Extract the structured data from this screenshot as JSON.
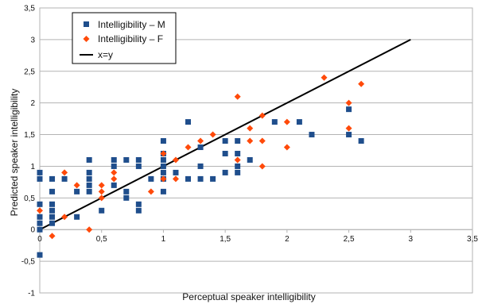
{
  "chart_data": {
    "type": "scatter",
    "title": "",
    "xlabel": "Perceptual speaker intelligibility",
    "ylabel": "Predicted speaker intelligibility",
    "xlim": [
      0,
      3.5
    ],
    "ylim": [
      -1,
      3.5
    ],
    "x_ticks": [
      "0",
      "0,5",
      "1",
      "1,5",
      "2",
      "2,5",
      "3",
      "3,5"
    ],
    "x_tick_values": [
      0,
      0.5,
      1,
      1.5,
      2,
      2.5,
      3,
      3.5
    ],
    "y_ticks": [
      "-1",
      "-0,5",
      "0",
      "0,5",
      "1",
      "1,5",
      "2",
      "2,5",
      "3",
      "3,5"
    ],
    "y_tick_values": [
      -1,
      -0.5,
      0,
      0.5,
      1,
      1.5,
      2,
      2.5,
      3,
      3.5
    ],
    "grid": "horizontal",
    "legend_position": "top-left",
    "series": [
      {
        "name": "Intelligibility – M",
        "marker": "square",
        "color": "#1f4e8c",
        "points": [
          [
            0,
            -0.4
          ],
          [
            0,
            0
          ],
          [
            0,
            0.1
          ],
          [
            0,
            0.2
          ],
          [
            0,
            0.4
          ],
          [
            0,
            0.8
          ],
          [
            0,
            0.9
          ],
          [
            0.1,
            0.1
          ],
          [
            0.1,
            0.2
          ],
          [
            0.1,
            0.3
          ],
          [
            0.1,
            0.4
          ],
          [
            0.1,
            0.6
          ],
          [
            0.1,
            0.8
          ],
          [
            0.2,
            0.8
          ],
          [
            0.3,
            0.2
          ],
          [
            0.3,
            0.6
          ],
          [
            0.4,
            0.6
          ],
          [
            0.4,
            0.7
          ],
          [
            0.4,
            0.8
          ],
          [
            0.4,
            0.9
          ],
          [
            0.4,
            1.1
          ],
          [
            0.5,
            0.3
          ],
          [
            0.6,
            0.7
          ],
          [
            0.6,
            1.0
          ],
          [
            0.6,
            1.1
          ],
          [
            0.7,
            0.5
          ],
          [
            0.7,
            0.6
          ],
          [
            0.7,
            1.1
          ],
          [
            0.8,
            0.3
          ],
          [
            0.8,
            0.4
          ],
          [
            0.8,
            1.0
          ],
          [
            0.8,
            1.1
          ],
          [
            0.9,
            0.8
          ],
          [
            1.0,
            0.6
          ],
          [
            1.0,
            0.8
          ],
          [
            1.0,
            0.9
          ],
          [
            1.0,
            1.0
          ],
          [
            1.0,
            1.1
          ],
          [
            1.0,
            1.2
          ],
          [
            1.0,
            1.4
          ],
          [
            1.1,
            0.9
          ],
          [
            1.2,
            0.8
          ],
          [
            1.2,
            1.7
          ],
          [
            1.3,
            0.8
          ],
          [
            1.3,
            1.0
          ],
          [
            1.3,
            1.3
          ],
          [
            1.4,
            0.8
          ],
          [
            1.5,
            0.9
          ],
          [
            1.5,
            1.2
          ],
          [
            1.5,
            1.4
          ],
          [
            1.6,
            0.9
          ],
          [
            1.6,
            1.0
          ],
          [
            1.6,
            1.2
          ],
          [
            1.6,
            1.4
          ],
          [
            1.7,
            1.1
          ],
          [
            1.9,
            1.7
          ],
          [
            2.1,
            1.7
          ],
          [
            2.2,
            1.5
          ],
          [
            2.5,
            1.5
          ],
          [
            2.5,
            1.9
          ],
          [
            2.6,
            1.4
          ]
        ]
      },
      {
        "name": "Intelligibility – F",
        "marker": "diamond",
        "color": "#ff4a0a",
        "points": [
          [
            0,
            0.3
          ],
          [
            0.1,
            -0.1
          ],
          [
            0.2,
            0.2
          ],
          [
            0.2,
            0.9
          ],
          [
            0.3,
            0.7
          ],
          [
            0.4,
            0
          ],
          [
            0.5,
            0.5
          ],
          [
            0.5,
            0.6
          ],
          [
            0.5,
            0.7
          ],
          [
            0.6,
            0.8
          ],
          [
            0.6,
            0.9
          ],
          [
            0.9,
            0.6
          ],
          [
            1.0,
            0.8
          ],
          [
            1.0,
            1.2
          ],
          [
            1.1,
            0.8
          ],
          [
            1.1,
            1.1
          ],
          [
            1.2,
            1.3
          ],
          [
            1.3,
            1.4
          ],
          [
            1.4,
            1.5
          ],
          [
            1.6,
            1.1
          ],
          [
            1.6,
            2.1
          ],
          [
            1.7,
            1.4
          ],
          [
            1.7,
            1.6
          ],
          [
            1.8,
            1.0
          ],
          [
            1.8,
            1.4
          ],
          [
            1.8,
            1.8
          ],
          [
            2.0,
            1.3
          ],
          [
            2.0,
            1.7
          ],
          [
            2.3,
            2.4
          ],
          [
            2.5,
            1.6
          ],
          [
            2.5,
            2.0
          ],
          [
            2.6,
            2.3
          ]
        ]
      },
      {
        "name": "x=y",
        "marker": "line",
        "color": "#000000",
        "points": [
          [
            0,
            0
          ],
          [
            3,
            3
          ]
        ]
      }
    ]
  }
}
